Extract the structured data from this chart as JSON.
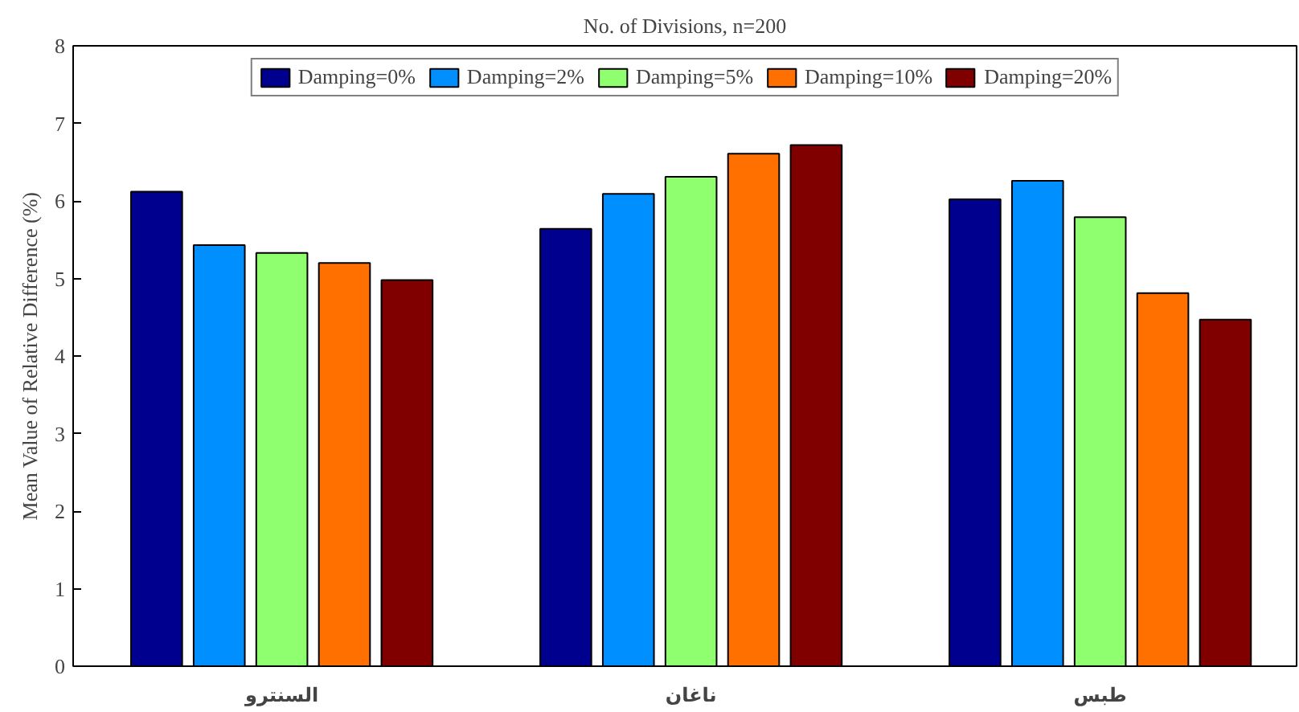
{
  "chart_data": {
    "type": "bar",
    "title": "No. of Divisions, n=200",
    "ylabel": "Mean Value of Relative Difference (%)",
    "categories": [
      "السنترو",
      "ناغان",
      "طبس"
    ],
    "series": [
      {
        "name": "Damping=0%",
        "color": "#00008f",
        "values": [
          6.12,
          5.64,
          6.02
        ]
      },
      {
        "name": "Damping=2%",
        "color": "#008fff",
        "values": [
          5.43,
          6.09,
          6.26
        ]
      },
      {
        "name": "Damping=5%",
        "color": "#8fff6f",
        "values": [
          5.33,
          6.31,
          5.79
        ]
      },
      {
        "name": "Damping=10%",
        "color": "#ff7000",
        "values": [
          5.2,
          6.61,
          4.81
        ]
      },
      {
        "name": "Damping=20%",
        "color": "#800000",
        "values": [
          4.98,
          6.72,
          4.47
        ]
      }
    ],
    "ylim": [
      0,
      8
    ],
    "yticks": [
      0,
      1,
      2,
      3,
      4,
      5,
      6,
      7,
      8
    ],
    "grid": false,
    "legend": "top"
  }
}
